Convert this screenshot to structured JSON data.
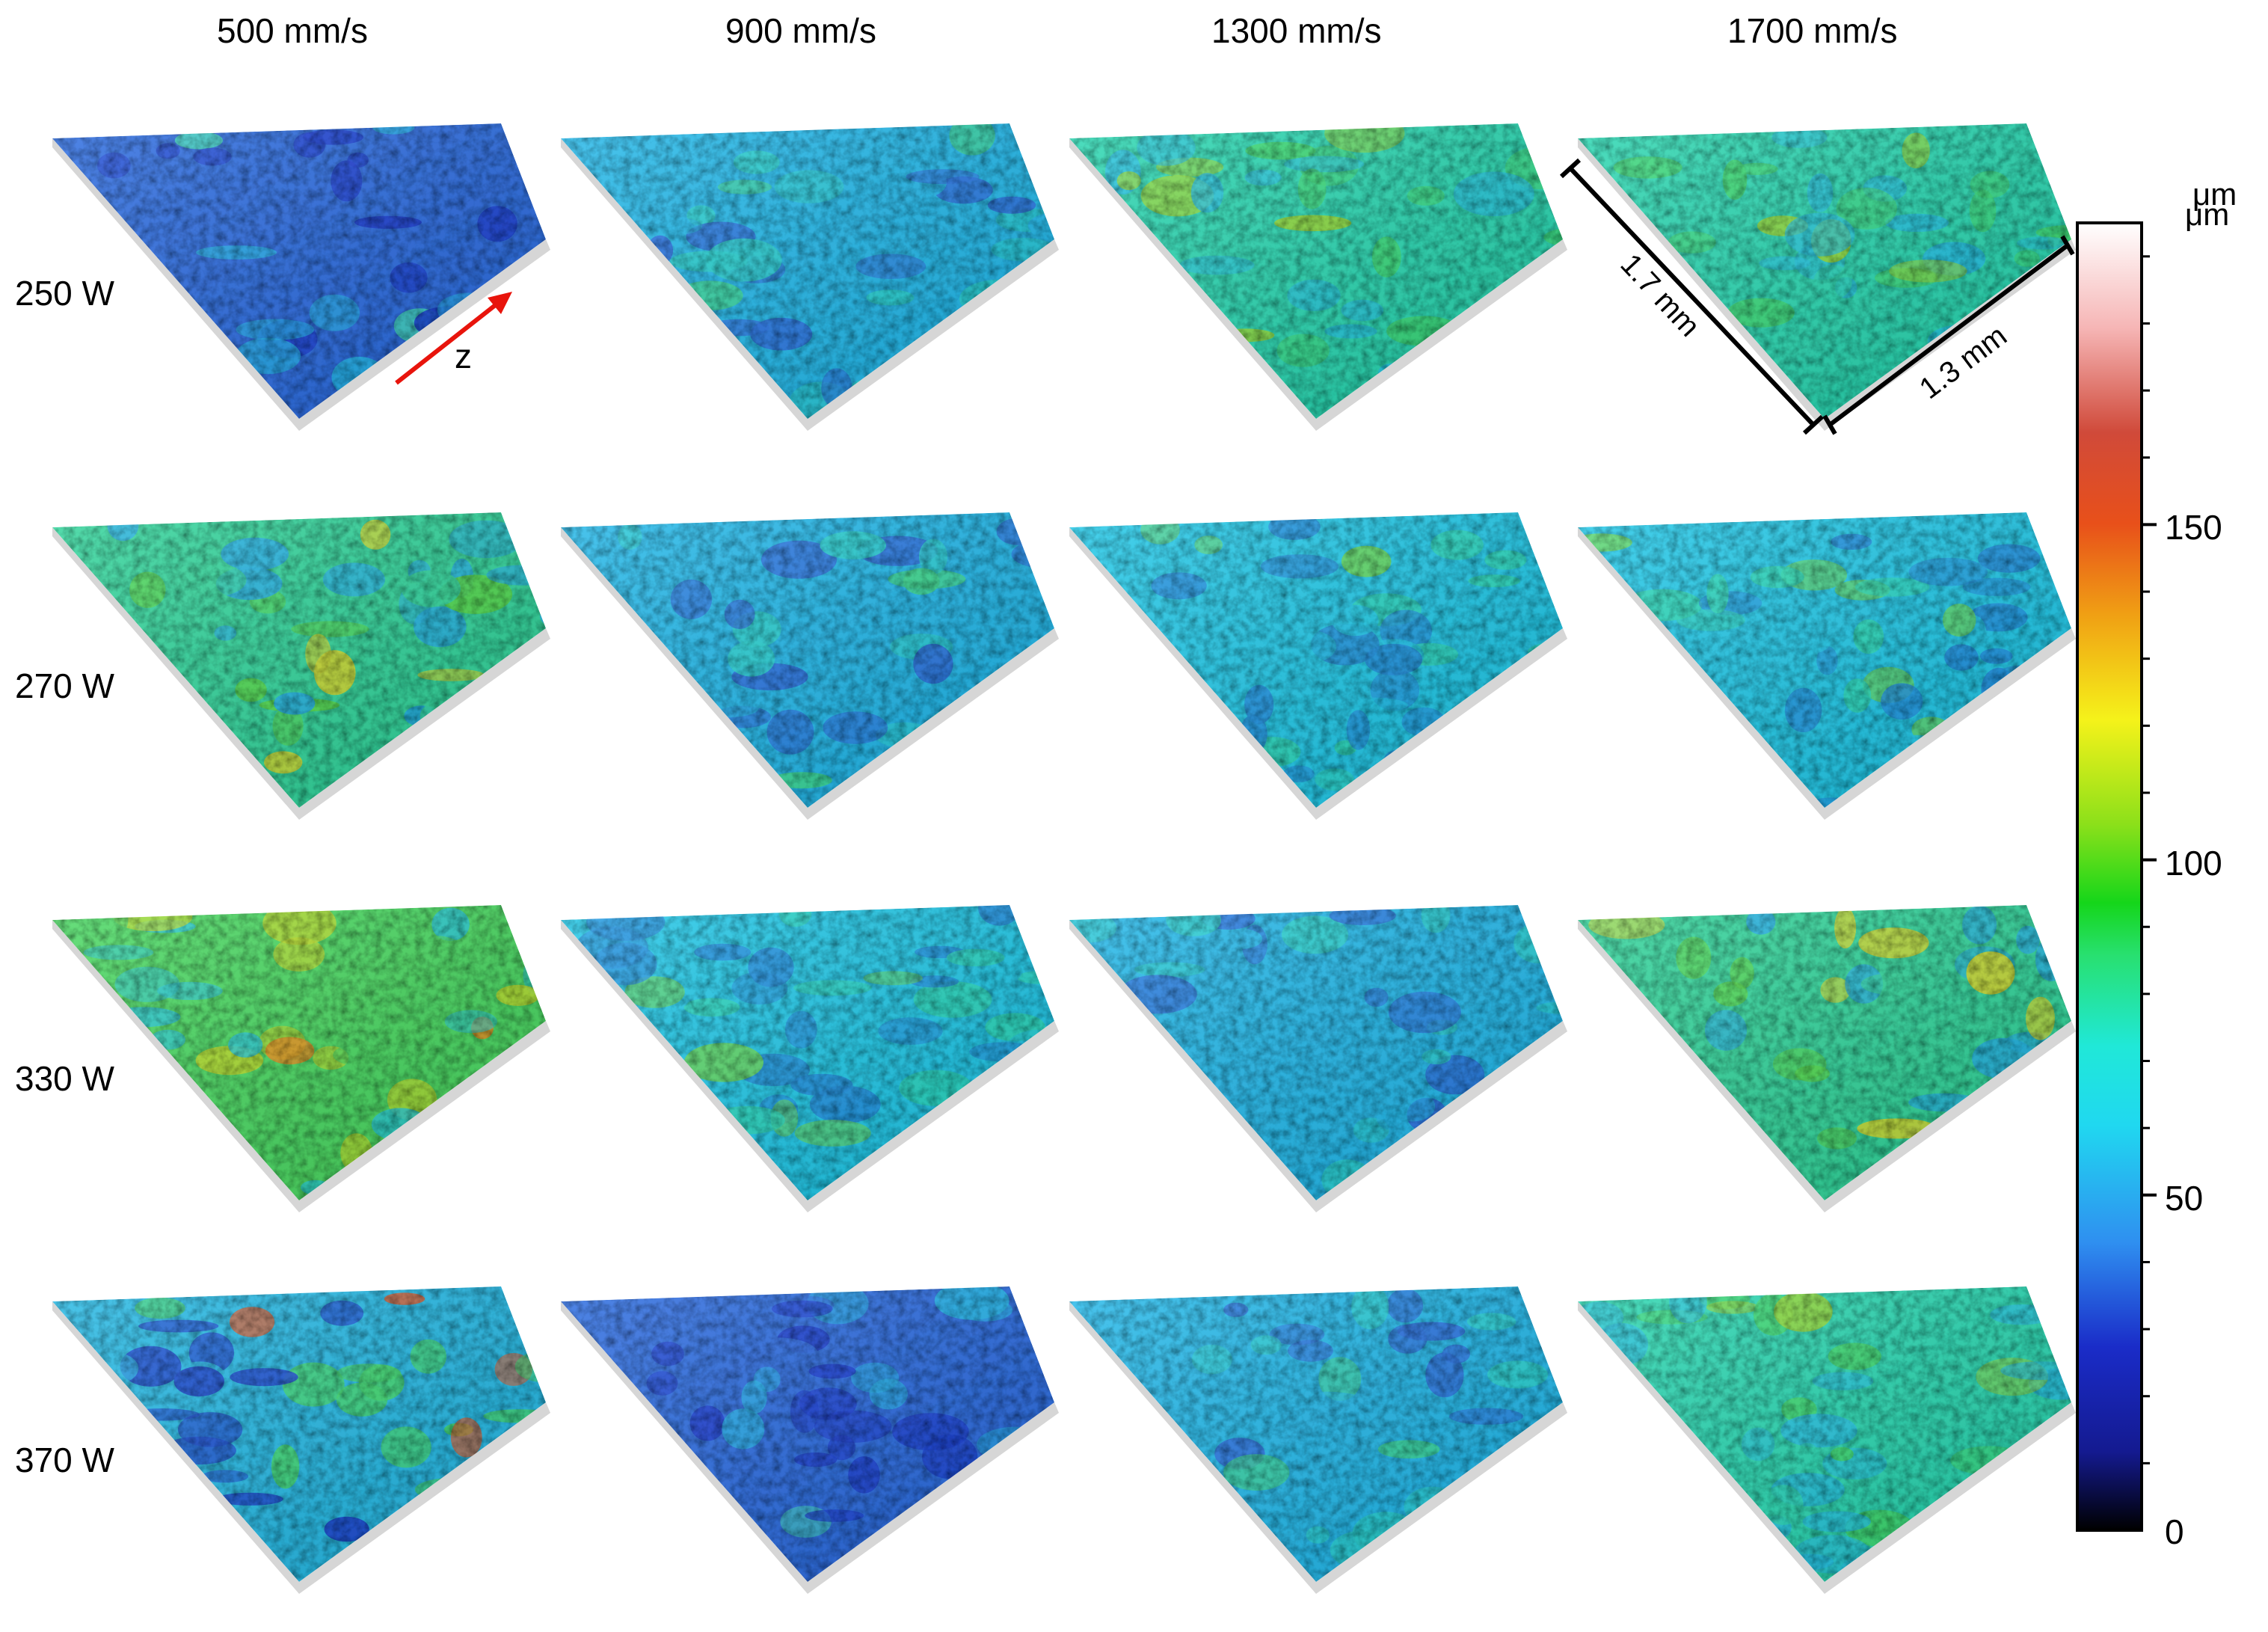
{
  "columns": [
    "500 mm/s",
    "900 mm/s",
    "1300 mm/s",
    "1700 mm/s"
  ],
  "rows": [
    "250 W",
    "270 W",
    "330 W",
    "370 W"
  ],
  "axis_arrow_label": "z",
  "dimensions": {
    "length": "1.7 mm",
    "width": "1.3 mm"
  },
  "colorbar": {
    "unit_labels": [
      "μm",
      "μm"
    ],
    "ticks": [
      "0",
      "50",
      "100",
      "150"
    ],
    "tick_values": [
      0,
      50,
      100,
      150
    ],
    "range": [
      0,
      195
    ],
    "colors": [
      "#000000",
      "#1a2cc8",
      "#2f8ff0",
      "#20e8f0",
      "#28e070",
      "#15d61a",
      "#8ce01a",
      "#f5f21a",
      "#f0a014",
      "#e8501a",
      "#d04a3a",
      "#f6b6b6",
      "#ffffff"
    ]
  },
  "surfaces": [
    [
      "blue",
      "cyan-blue",
      "cyan-green",
      "cyan-green"
    ],
    [
      "green",
      "cyan-blue",
      "cyan",
      "cyan"
    ],
    [
      "green-yellow",
      "cyan",
      "cyan-blue",
      "green"
    ],
    [
      "blue-green",
      "blue",
      "cyan-blue",
      "cyan-green"
    ]
  ]
}
